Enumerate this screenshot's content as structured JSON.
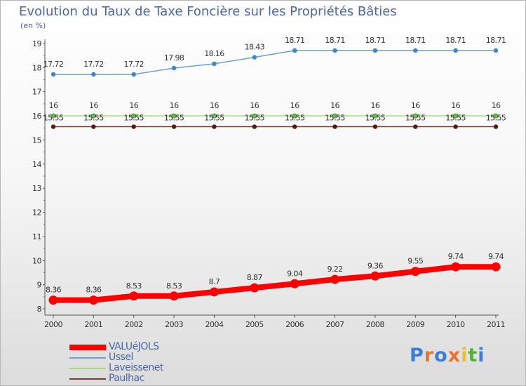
{
  "title": "Evolution du Taux de Taxe Foncière sur les Propriétés Bâties",
  "unit_label": "(en %)",
  "logo": {
    "text": "Proxiti",
    "letters": [
      "P",
      "r",
      "o",
      "x",
      "i",
      "t",
      "i"
    ],
    "colors": [
      "#3a7fd5",
      "#e8732c",
      "#3a7fd5",
      "#e8732c",
      "#e3c22d",
      "#55b13b",
      "#3a7fd5"
    ]
  },
  "chart_data": {
    "type": "line",
    "title": "Evolution du Taux de Taxe Foncière sur les Propriétés Bâties",
    "ylabel": "(en %)",
    "xlabel": "",
    "x": [
      "2000",
      "2001",
      "2002",
      "2003",
      "2004",
      "2005",
      "2006",
      "2007",
      "2008",
      "2009",
      "2010",
      "2011"
    ],
    "ylim": [
      8,
      19
    ],
    "yticks": [
      "8",
      "9",
      "10",
      "11",
      "12",
      "13",
      "14",
      "15",
      "16",
      "17",
      "18",
      "19"
    ],
    "grid": false,
    "legend_position": "bottom-left",
    "series": [
      {
        "name": "VALUéJOLS",
        "color": "#ff0000",
        "values": [
          8.36,
          8.36,
          8.53,
          8.53,
          8.7,
          8.87,
          9.04,
          9.22,
          9.36,
          9.55,
          9.74,
          9.74
        ],
        "labels": [
          "8.36",
          "8.36",
          "8.53",
          "8.53",
          "8.7",
          "8.87",
          "9.04",
          "9.22",
          "9.36",
          "9.55",
          "9.74",
          "9.74"
        ]
      },
      {
        "name": "Ussel",
        "color": "#6fa0cf",
        "values": [
          17.72,
          17.72,
          17.72,
          17.98,
          18.16,
          18.43,
          18.71,
          18.71,
          18.71,
          18.71,
          18.71,
          18.71
        ],
        "labels": [
          "17.72",
          "17.72",
          "17.72",
          "17.98",
          "18.16",
          "18.43",
          "18.71",
          "18.71",
          "18.71",
          "18.71",
          "18.71",
          "18.71"
        ]
      },
      {
        "name": "Laveissenet",
        "color": "#a4dc78",
        "values": [
          16,
          16,
          16,
          16,
          16,
          16,
          16,
          16,
          16,
          16,
          16,
          16
        ],
        "labels": [
          "16",
          "16",
          "16",
          "16",
          "16",
          "16",
          "16",
          "16",
          "16",
          "16",
          "16",
          "16"
        ]
      },
      {
        "name": "Paulhac",
        "color": "#7a3a3a",
        "values": [
          15.55,
          15.55,
          15.55,
          15.55,
          15.55,
          15.55,
          15.55,
          15.55,
          15.55,
          15.55,
          15.55,
          15.55
        ],
        "labels": [
          "15.55",
          "15.55",
          "15.55",
          "15.55",
          "15.55",
          "15.55",
          "15.55",
          "15.55",
          "15.55",
          "15.55",
          "15.55",
          "15.55"
        ]
      }
    ]
  }
}
